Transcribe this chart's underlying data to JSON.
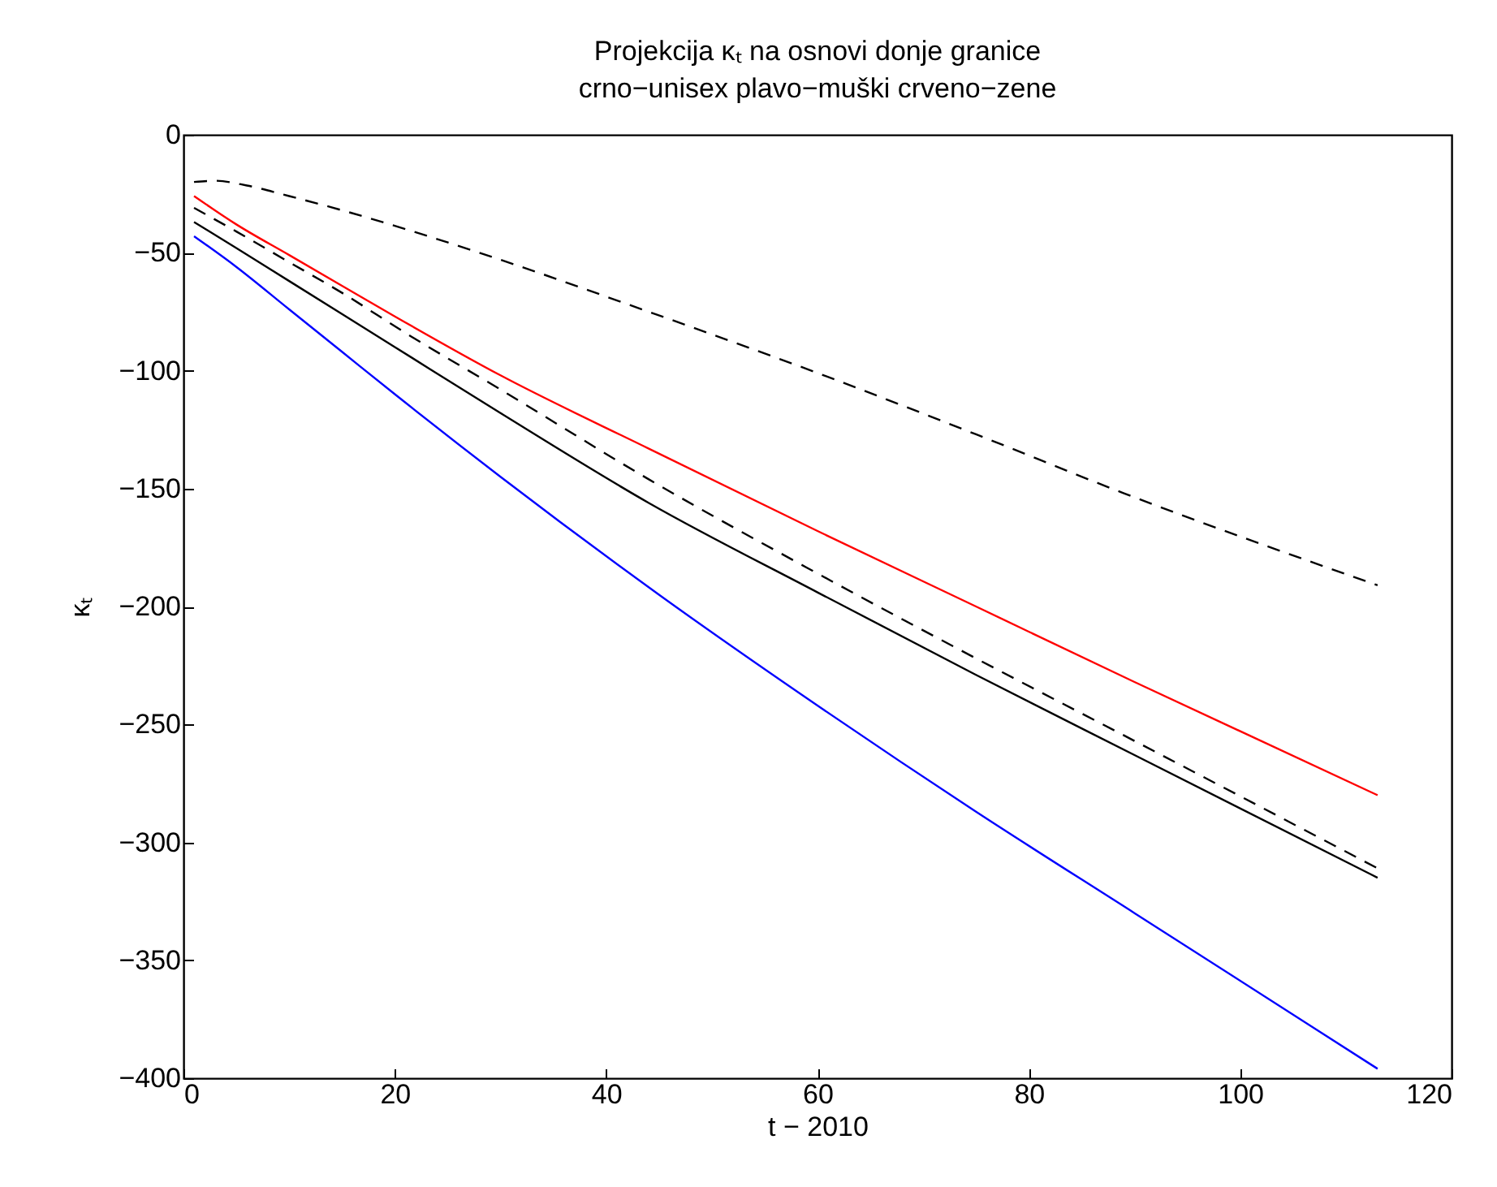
{
  "chart_data": {
    "type": "line",
    "title": "Projekcija κₜ na osnovi donje granice",
    "subtitle": "crno−unisex plavo−muški crveno−zene",
    "xlabel": "t − 2010",
    "ylabel": "κₜ",
    "xlim": [
      0,
      120
    ],
    "xticks": [
      0,
      20,
      40,
      60,
      80,
      100,
      120
    ],
    "ylim": [
      -400,
      0
    ],
    "yticks": [
      0,
      -50,
      -100,
      -150,
      -200,
      -250,
      -300,
      -350,
      -400
    ],
    "series": [
      {
        "color": "#000000",
        "line_style": "solid",
        "x": [
          1,
          5,
          10,
          15,
          20,
          30,
          44,
          60,
          75,
          90,
          113
        ],
        "values": [
          -37,
          -48,
          -62,
          -76,
          -90,
          -118,
          -156,
          -194,
          -229,
          -263,
          -315
        ]
      },
      {
        "color": "#000000",
        "line_style": "dashed",
        "x": [
          1,
          5,
          10,
          15,
          21,
          30,
          44,
          60,
          75,
          90,
          113
        ],
        "values": [
          -31,
          -41,
          -54,
          -67,
          -84,
          -108,
          -146,
          -186,
          -222,
          -257,
          -311
        ]
      },
      {
        "color": "#000000",
        "line_style": "dashed",
        "x": [
          1,
          3,
          6,
          10,
          15,
          21,
          30,
          44,
          60,
          75,
          89,
          113
        ],
        "values": [
          -20,
          -19.5,
          -21.5,
          -26,
          -32,
          -40,
          -53,
          -75,
          -101,
          -127,
          -152,
          -191
        ]
      },
      {
        "color": "#0000ff",
        "line_style": "solid",
        "x": [
          1,
          5,
          10,
          15,
          20,
          30,
          45,
          60,
          75,
          90,
          113
        ],
        "values": [
          -43,
          -56,
          -74,
          -92,
          -110,
          -145,
          -195,
          -242,
          -287,
          -330,
          -396
        ]
      },
      {
        "color": "#ff0000",
        "line_style": "solid",
        "x": [
          1,
          5,
          10,
          15,
          20,
          30,
          44,
          60,
          75,
          90,
          113
        ],
        "values": [
          -26,
          -38,
          -51,
          -64,
          -77,
          -102,
          -133,
          -168,
          -200,
          -232,
          -280
        ]
      }
    ]
  }
}
